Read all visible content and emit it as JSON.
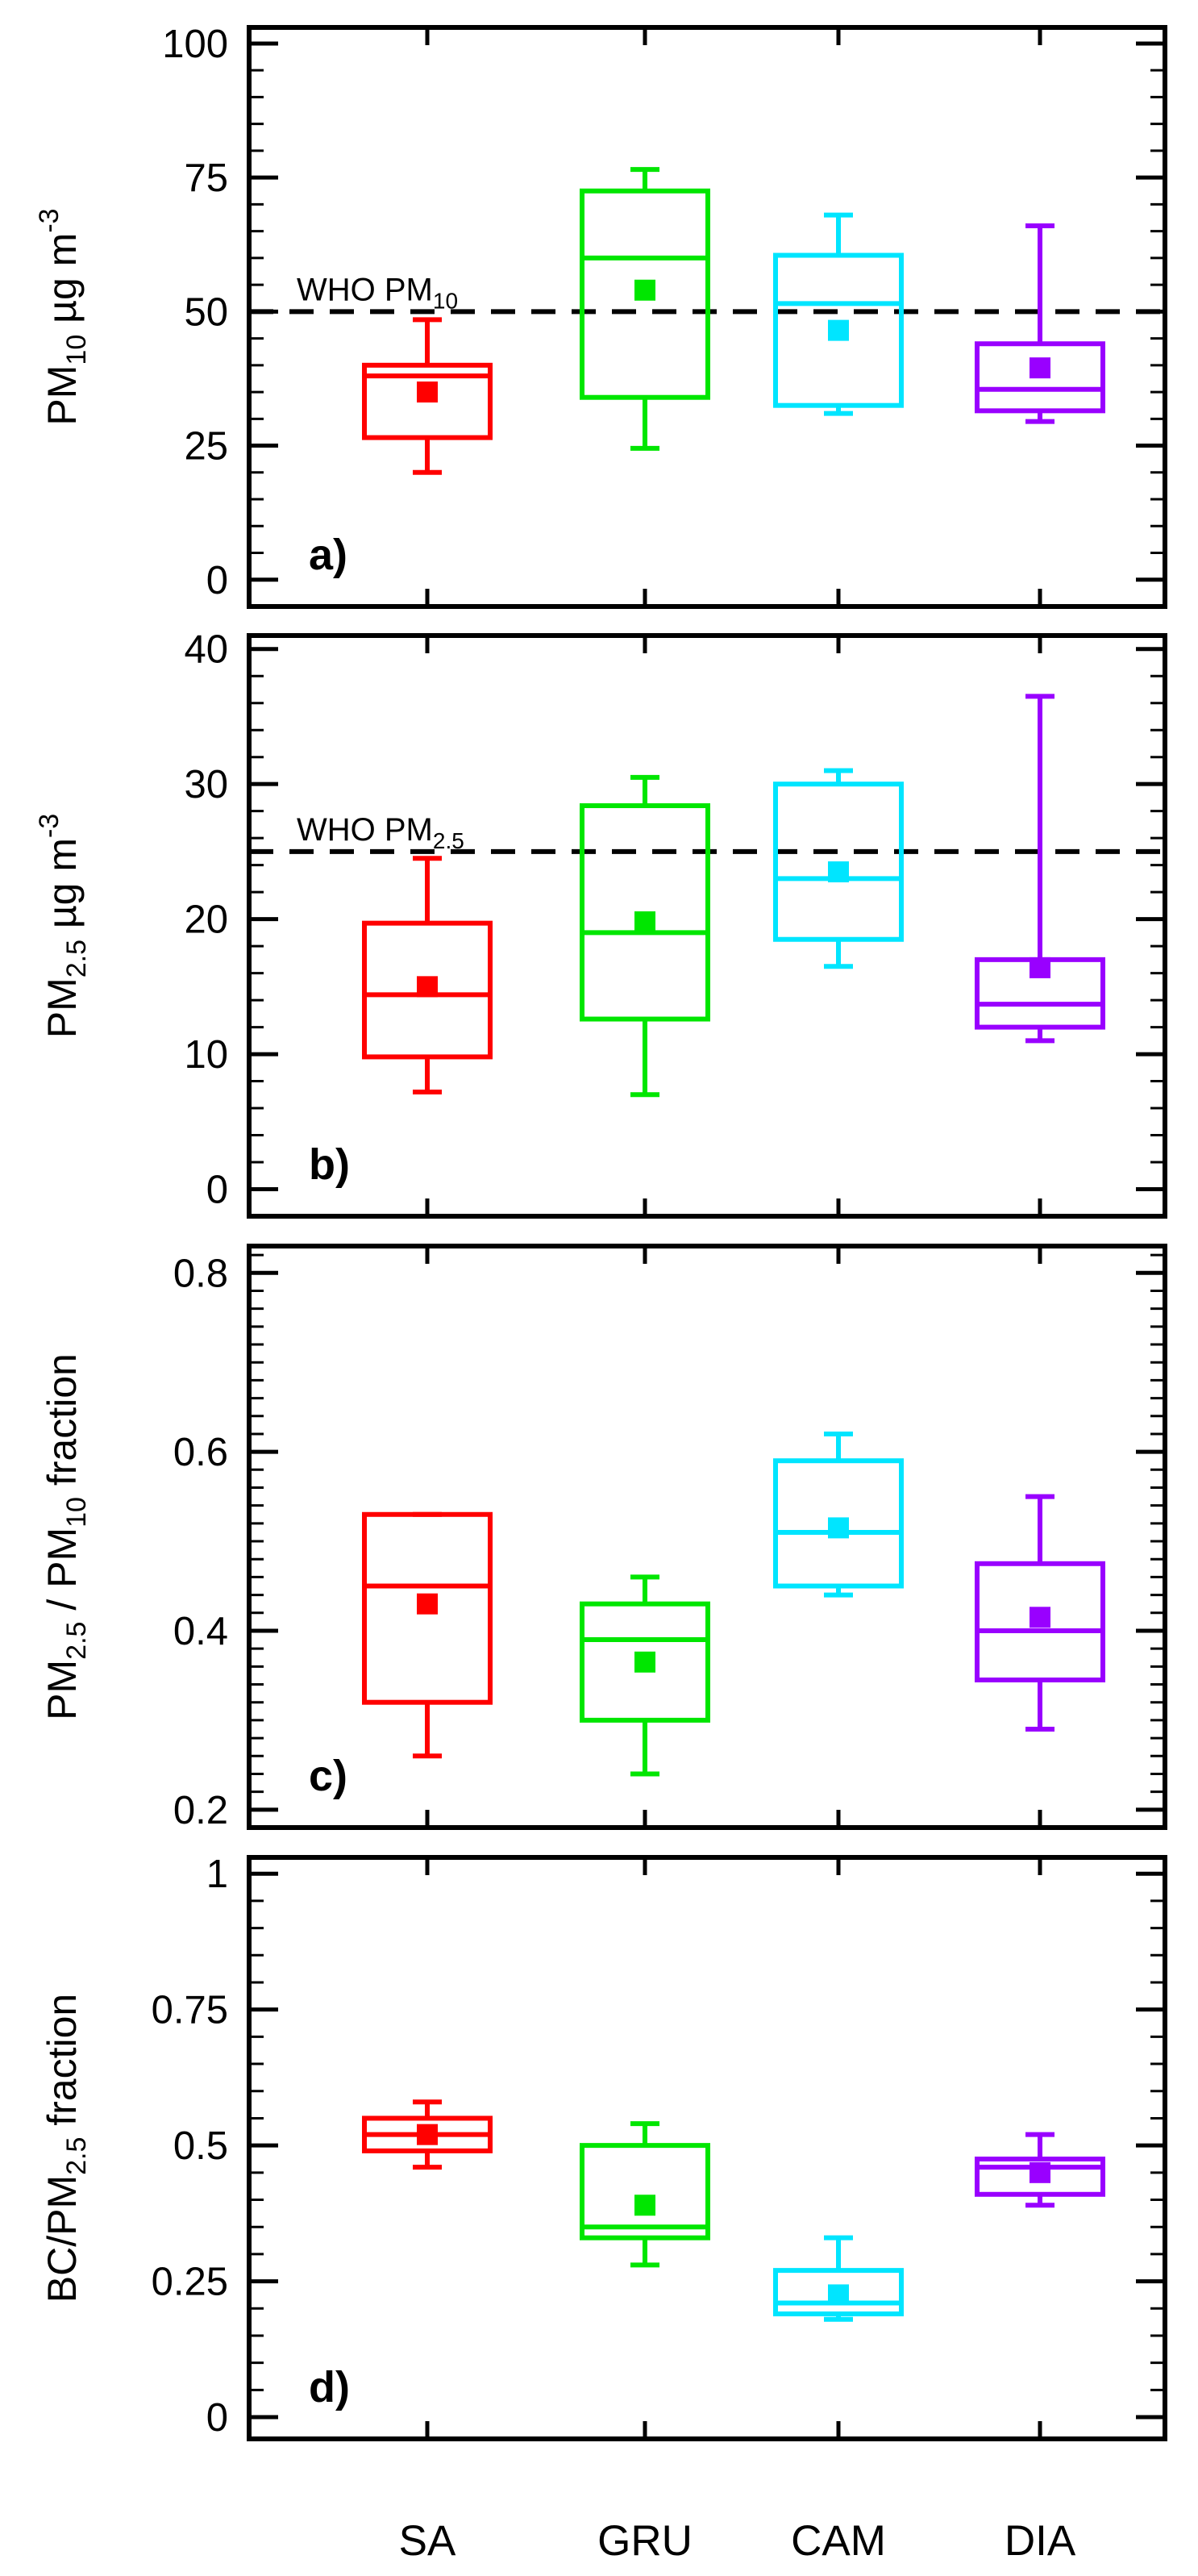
{
  "figure": {
    "categories": [
      "SA",
      "GRU",
      "CAM",
      "DIA"
    ],
    "series_colors": {
      "SA": "#ff0000",
      "GRU": "#00e600",
      "CAM": "#00e5ff",
      "DIA": "#9900ff"
    },
    "panels": [
      {
        "id": "a",
        "panel_tag": "a)",
        "ylabel": {
          "main": "PM",
          "sub": "10",
          "unit": " µg m",
          "sup": "-3"
        },
        "ylim": [
          -5,
          103
        ],
        "ticks": [
          0,
          25,
          50,
          75,
          100
        ],
        "tick_labels": [
          "0",
          "25",
          "50",
          "75",
          "100"
        ],
        "minor_step": 5,
        "reference_line": {
          "value": 50,
          "label_main": "WHO PM",
          "label_sub": "10"
        },
        "boxes": [
          {
            "category": "SA",
            "min": 20,
            "q1": 26.5,
            "median": 38,
            "q3": 40,
            "max": 48.5,
            "mean": 35
          },
          {
            "category": "GRU",
            "min": 24.5,
            "q1": 34,
            "median": 60,
            "q3": 72.5,
            "max": 76.5,
            "mean": 54
          },
          {
            "category": "CAM",
            "min": 31,
            "q1": 32.5,
            "median": 51.5,
            "q3": 60.5,
            "max": 68,
            "mean": 46.5
          },
          {
            "category": "DIA",
            "min": 29.5,
            "q1": 31.5,
            "median": 35.5,
            "q3": 44,
            "max": 66,
            "mean": 39.5
          }
        ]
      },
      {
        "id": "b",
        "panel_tag": "b)",
        "ylabel": {
          "main": "PM",
          "sub": "2.5",
          "unit": " µg m",
          "sup": "-3"
        },
        "ylim": [
          -2,
          41
        ],
        "ticks": [
          0,
          10,
          20,
          30,
          40
        ],
        "tick_labels": [
          "0",
          "10",
          "20",
          "30",
          "40"
        ],
        "minor_step": 2,
        "reference_line": {
          "value": 25,
          "label_main": "WHO PM",
          "label_sub": "2.5"
        },
        "boxes": [
          {
            "category": "SA",
            "min": 7.2,
            "q1": 9.8,
            "median": 14.4,
            "q3": 19.7,
            "max": 24.5,
            "mean": 15
          },
          {
            "category": "GRU",
            "min": 7,
            "q1": 12.6,
            "median": 19,
            "q3": 28.4,
            "max": 30.5,
            "mean": 19.8
          },
          {
            "category": "CAM",
            "min": 16.5,
            "q1": 18.5,
            "median": 23,
            "q3": 30,
            "max": 31,
            "mean": 23.5
          },
          {
            "category": "DIA",
            "min": 11,
            "q1": 12,
            "median": 13.7,
            "q3": 17,
            "max": 36.5,
            "mean": 16.4
          }
        ]
      },
      {
        "id": "c",
        "panel_tag": "c)",
        "ylabel": {
          "main": "PM",
          "sub": "2.5",
          "mid": " / PM",
          "sub2": "10",
          "end": " fraction"
        },
        "ylim": [
          0.18,
          0.83
        ],
        "ticks": [
          0.2,
          0.4,
          0.6,
          0.8
        ],
        "tick_labels": [
          "0.2",
          "0.4",
          "0.6",
          "0.8"
        ],
        "minor_step": 0.02,
        "boxes": [
          {
            "category": "SA",
            "min": 0.26,
            "q1": 0.32,
            "median": 0.45,
            "q3": 0.53,
            "max": 0.53,
            "mean": 0.43
          },
          {
            "category": "GRU",
            "min": 0.24,
            "q1": 0.3,
            "median": 0.39,
            "q3": 0.43,
            "max": 0.46,
            "mean": 0.365
          },
          {
            "category": "CAM",
            "min": 0.44,
            "q1": 0.45,
            "median": 0.51,
            "q3": 0.59,
            "max": 0.62,
            "mean": 0.515
          },
          {
            "category": "DIA",
            "min": 0.29,
            "q1": 0.345,
            "median": 0.4,
            "q3": 0.475,
            "max": 0.55,
            "mean": 0.415
          }
        ]
      },
      {
        "id": "d",
        "panel_tag": "d)",
        "ylabel": {
          "main": "BC/PM",
          "sub": "2.5",
          "end": " fraction"
        },
        "ylim": [
          -0.04,
          1.03
        ],
        "ticks": [
          0,
          0.25,
          0.5,
          0.75,
          1
        ],
        "tick_labels": [
          "0",
          "0.25",
          "0.5",
          "0.75",
          "1"
        ],
        "minor_step": 0.05,
        "boxes": [
          {
            "category": "SA",
            "min": 0.46,
            "q1": 0.49,
            "median": 0.52,
            "q3": 0.55,
            "max": 0.58,
            "mean": 0.52
          },
          {
            "category": "GRU",
            "min": 0.28,
            "q1": 0.33,
            "median": 0.35,
            "q3": 0.5,
            "max": 0.54,
            "mean": 0.39
          },
          {
            "category": "CAM",
            "min": 0.18,
            "q1": 0.19,
            "median": 0.21,
            "q3": 0.27,
            "max": 0.33,
            "mean": 0.225
          },
          {
            "category": "DIA",
            "min": 0.39,
            "q1": 0.41,
            "median": 0.46,
            "q3": 0.475,
            "max": 0.52,
            "mean": 0.45
          }
        ]
      }
    ]
  },
  "chart_data": [
    {
      "type": "box",
      "panel": "a)",
      "ylabel": "PM10 µg m-3",
      "categories": [
        "SA",
        "GRU",
        "CAM",
        "DIA"
      ],
      "ylim": [
        -5,
        103
      ],
      "reference_line": {
        "label": "WHO PM10",
        "value": 50
      },
      "series": [
        {
          "name": "SA",
          "min": 20,
          "q1": 26.5,
          "median": 38,
          "q3": 40,
          "max": 48.5,
          "mean": 35
        },
        {
          "name": "GRU",
          "min": 24.5,
          "q1": 34,
          "median": 60,
          "q3": 72.5,
          "max": 76.5,
          "mean": 54
        },
        {
          "name": "CAM",
          "min": 31,
          "q1": 32.5,
          "median": 51.5,
          "q3": 60.5,
          "max": 68,
          "mean": 46.5
        },
        {
          "name": "DIA",
          "min": 29.5,
          "q1": 31.5,
          "median": 35.5,
          "q3": 44,
          "max": 66,
          "mean": 39.5
        }
      ]
    },
    {
      "type": "box",
      "panel": "b)",
      "ylabel": "PM2.5 µg m-3",
      "categories": [
        "SA",
        "GRU",
        "CAM",
        "DIA"
      ],
      "ylim": [
        -2,
        41
      ],
      "reference_line": {
        "label": "WHO PM2.5",
        "value": 25
      },
      "series": [
        {
          "name": "SA",
          "min": 7.2,
          "q1": 9.8,
          "median": 14.4,
          "q3": 19.7,
          "max": 24.5,
          "mean": 15
        },
        {
          "name": "GRU",
          "min": 7,
          "q1": 12.6,
          "median": 19,
          "q3": 28.4,
          "max": 30.5,
          "mean": 19.8
        },
        {
          "name": "CAM",
          "min": 16.5,
          "q1": 18.5,
          "median": 23,
          "q3": 30,
          "max": 31,
          "mean": 23.5
        },
        {
          "name": "DIA",
          "min": 11,
          "q1": 12,
          "median": 13.7,
          "q3": 17,
          "max": 36.5,
          "mean": 16.4
        }
      ]
    },
    {
      "type": "box",
      "panel": "c)",
      "ylabel": "PM2.5 / PM10 fraction",
      "categories": [
        "SA",
        "GRU",
        "CAM",
        "DIA"
      ],
      "ylim": [
        0.18,
        0.83
      ],
      "series": [
        {
          "name": "SA",
          "min": 0.26,
          "q1": 0.32,
          "median": 0.45,
          "q3": 0.53,
          "max": 0.53,
          "mean": 0.43
        },
        {
          "name": "GRU",
          "min": 0.24,
          "q1": 0.3,
          "median": 0.39,
          "q3": 0.43,
          "max": 0.46,
          "mean": 0.365
        },
        {
          "name": "CAM",
          "min": 0.44,
          "q1": 0.45,
          "median": 0.51,
          "q3": 0.59,
          "max": 0.62,
          "mean": 0.515
        },
        {
          "name": "DIA",
          "min": 0.29,
          "q1": 0.345,
          "median": 0.4,
          "q3": 0.475,
          "max": 0.55,
          "mean": 0.415
        }
      ]
    },
    {
      "type": "box",
      "panel": "d)",
      "ylabel": "BC/PM2.5 fraction",
      "categories": [
        "SA",
        "GRU",
        "CAM",
        "DIA"
      ],
      "ylim": [
        -0.04,
        1.03
      ],
      "series": [
        {
          "name": "SA",
          "min": 0.46,
          "q1": 0.49,
          "median": 0.52,
          "q3": 0.55,
          "max": 0.58,
          "mean": 0.52
        },
        {
          "name": "GRU",
          "min": 0.28,
          "q1": 0.33,
          "median": 0.35,
          "q3": 0.5,
          "max": 0.54,
          "mean": 0.39
        },
        {
          "name": "CAM",
          "min": 0.18,
          "q1": 0.19,
          "median": 0.21,
          "q3": 0.27,
          "max": 0.33,
          "mean": 0.225
        },
        {
          "name": "DIA",
          "min": 0.39,
          "q1": 0.41,
          "median": 0.46,
          "q3": 0.475,
          "max": 0.52,
          "mean": 0.45
        }
      ]
    }
  ]
}
